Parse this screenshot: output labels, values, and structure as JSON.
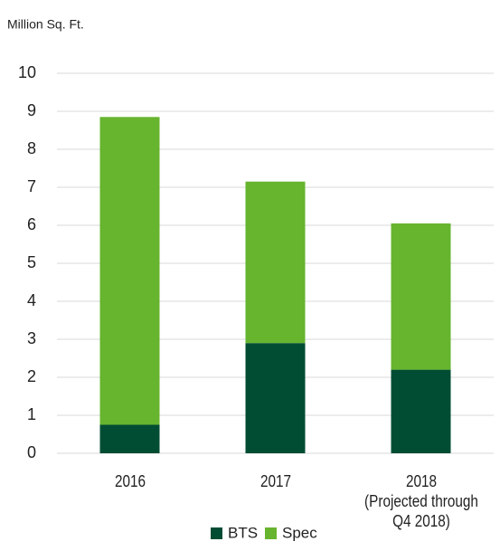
{
  "chart_data": {
    "type": "stacked_bar",
    "y_label": "Million Sq. Ft.",
    "categories": [
      "2016",
      "2017",
      "2018\n(Projected through\nQ4 2018)"
    ],
    "series": [
      {
        "name": "BTS",
        "color": "#004d33",
        "values": [
          0.75,
          2.9,
          2.2
        ]
      },
      {
        "name": "Spec",
        "color": "#67b42f",
        "values": [
          8.1,
          4.25,
          3.85
        ]
      }
    ],
    "ylim": [
      0,
      10
    ],
    "yticks": [
      0,
      1,
      2,
      3,
      4,
      5,
      6,
      7,
      8,
      9,
      10
    ],
    "grid": true,
    "legend": "bottom"
  }
}
